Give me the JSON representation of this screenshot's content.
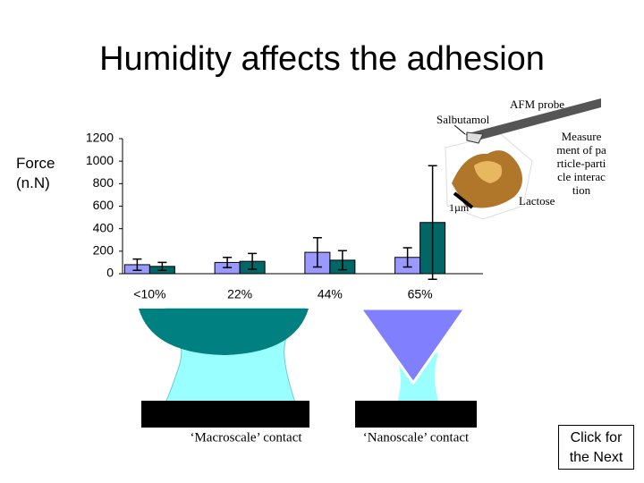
{
  "title": "Humidity affects the adhesion",
  "chart_data": {
    "type": "bar",
    "y_label": "Force (n.N)",
    "categories": [
      "<10%",
      "22%",
      "44%",
      "65%"
    ],
    "series": [
      {
        "color": "#9999ff",
        "values": [
          80,
          100,
          190,
          145
        ],
        "errors": [
          50,
          45,
          130,
          85
        ]
      },
      {
        "color": "#006666",
        "values": [
          65,
          110,
          120,
          455
        ],
        "errors": [
          35,
          70,
          85,
          505
        ]
      }
    ],
    "ylim": [
      0,
      1200
    ],
    "yticks": [
      0,
      200,
      400,
      600,
      800,
      1000,
      1200
    ],
    "grid": false
  },
  "afm": {
    "probe": "AFM probe",
    "drug": "Salbutamol",
    "carrier": "Lactose",
    "scale": "1µm",
    "note": "Measure ment of particle-particle interaction"
  },
  "diagrams": {
    "macro": "‘Macroscale’ contact",
    "nano": "‘Nanoscale’ contact"
  },
  "button": "Click for the Next"
}
